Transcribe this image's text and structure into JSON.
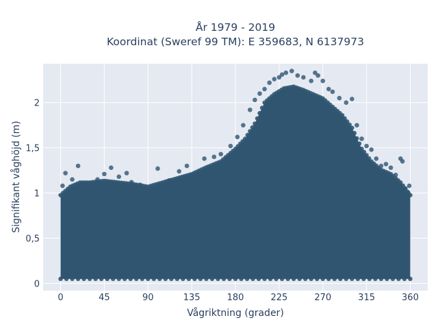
{
  "chart_data": {
    "type": "scatter",
    "title": "År 1979 - 2019",
    "subtitle": "Koordinat (Sweref 99 TM): E 359683, N 6137973",
    "xlabel": "Vågriktning (grader)",
    "ylabel": "Signifikant våghöjd (m)",
    "xlim": [
      -18,
      378
    ],
    "ylim": [
      -0.08,
      2.43
    ],
    "xticks": [
      0,
      45,
      90,
      135,
      180,
      225,
      270,
      315,
      360
    ],
    "xtick_labels": [
      "0",
      "45",
      "90",
      "135",
      "180",
      "225",
      "270",
      "315",
      "360"
    ],
    "yticks": [
      0,
      0.5,
      1,
      1.5,
      2
    ],
    "ytick_labels": [
      "0",
      "0,5",
      "1",
      "1,5",
      "2"
    ],
    "grid": true,
    "legend": "none",
    "marker_color": "#2f5570",
    "background_color": "#e5e9f2",
    "envelope": {
      "x": [
        0,
        10,
        20,
        30,
        45,
        60,
        75,
        90,
        105,
        120,
        135,
        150,
        165,
        180,
        190,
        200,
        210,
        220,
        230,
        240,
        250,
        260,
        270,
        280,
        290,
        300,
        310,
        320,
        330,
        340,
        350,
        360
      ],
      "y_max": [
        1.05,
        1.15,
        1.2,
        1.2,
        1.22,
        1.2,
        1.18,
        1.15,
        1.2,
        1.25,
        1.3,
        1.38,
        1.45,
        1.6,
        1.72,
        1.9,
        2.15,
        2.25,
        2.32,
        2.34,
        2.3,
        2.25,
        2.2,
        2.1,
        2.0,
        1.85,
        1.6,
        1.45,
        1.35,
        1.3,
        1.2,
        1.05
      ]
    },
    "points": [
      {
        "x": 2,
        "y": 1.08
      },
      {
        "x": 5,
        "y": 1.22
      },
      {
        "x": 12,
        "y": 1.15
      },
      {
        "x": 18,
        "y": 1.3
      },
      {
        "x": 25,
        "y": 1.1
      },
      {
        "x": 38,
        "y": 1.15
      },
      {
        "x": 45,
        "y": 1.21
      },
      {
        "x": 52,
        "y": 1.28
      },
      {
        "x": 60,
        "y": 1.18
      },
      {
        "x": 68,
        "y": 1.22
      },
      {
        "x": 73,
        "y": 1.12
      },
      {
        "x": 82,
        "y": 1.09
      },
      {
        "x": 88,
        "y": 1.04
      },
      {
        "x": 100,
        "y": 1.27
      },
      {
        "x": 112,
        "y": 1.14
      },
      {
        "x": 122,
        "y": 1.24
      },
      {
        "x": 130,
        "y": 1.3
      },
      {
        "x": 148,
        "y": 1.38
      },
      {
        "x": 158,
        "y": 1.4
      },
      {
        "x": 165,
        "y": 1.43
      },
      {
        "x": 175,
        "y": 1.52
      },
      {
        "x": 182,
        "y": 1.62
      },
      {
        "x": 188,
        "y": 1.75
      },
      {
        "x": 195,
        "y": 1.92
      },
      {
        "x": 200,
        "y": 2.03
      },
      {
        "x": 205,
        "y": 2.1
      },
      {
        "x": 210,
        "y": 2.15
      },
      {
        "x": 215,
        "y": 2.22
      },
      {
        "x": 220,
        "y": 2.26
      },
      {
        "x": 225,
        "y": 2.28
      },
      {
        "x": 228,
        "y": 2.31
      },
      {
        "x": 232,
        "y": 2.33
      },
      {
        "x": 238,
        "y": 2.35
      },
      {
        "x": 244,
        "y": 2.3
      },
      {
        "x": 250,
        "y": 2.28
      },
      {
        "x": 258,
        "y": 2.24
      },
      {
        "x": 262,
        "y": 2.33
      },
      {
        "x": 265,
        "y": 2.3
      },
      {
        "x": 270,
        "y": 2.24
      },
      {
        "x": 276,
        "y": 2.15
      },
      {
        "x": 280,
        "y": 2.12
      },
      {
        "x": 287,
        "y": 2.05
      },
      {
        "x": 294,
        "y": 2.0
      },
      {
        "x": 300,
        "y": 2.04
      },
      {
        "x": 305,
        "y": 1.75
      },
      {
        "x": 310,
        "y": 1.6
      },
      {
        "x": 315,
        "y": 1.52
      },
      {
        "x": 320,
        "y": 1.48
      },
      {
        "x": 325,
        "y": 1.38
      },
      {
        "x": 330,
        "y": 1.3
      },
      {
        "x": 335,
        "y": 1.32
      },
      {
        "x": 340,
        "y": 1.28
      },
      {
        "x": 345,
        "y": 1.2
      },
      {
        "x": 350,
        "y": 1.38
      },
      {
        "x": 352,
        "y": 1.35
      },
      {
        "x": 355,
        "y": 1.05
      },
      {
        "x": 358,
        "y": 1.0
      },
      {
        "x": 359,
        "y": 1.08
      }
    ]
  }
}
